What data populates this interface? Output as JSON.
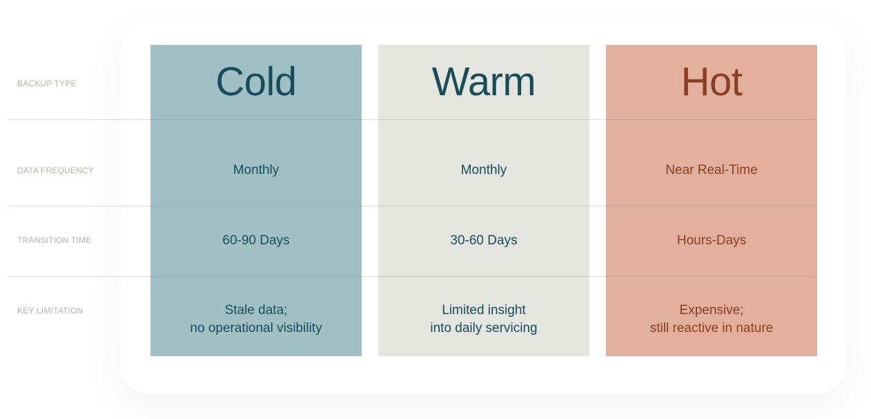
{
  "row_labels": {
    "backup_type": "BACKUP TYPE",
    "data_frequency": "DATA FREQUENCY",
    "transition_time": "TRANSITION TIME",
    "key_limitation": "KEY LIMITATION"
  },
  "columns": [
    {
      "title": "Cold",
      "data_frequency": "Monthly",
      "transition_time": "60-90 Days",
      "key_limitation": [
        "Stale data;",
        "no operational visibility"
      ],
      "bg_color": "#a1c0c5",
      "text_color": "#174d59"
    },
    {
      "title": "Warm",
      "data_frequency": "Monthly",
      "transition_time": "30-60 Days",
      "key_limitation": [
        "Limited insight",
        "into daily servicing"
      ],
      "bg_color": "#e6e6e0",
      "text_color": "#174d59"
    },
    {
      "title": "Hot",
      "data_frequency": "Near Real-Time",
      "transition_time": "Hours-Days",
      "key_limitation": [
        "Expensive;",
        "still reactive in nature"
      ],
      "bg_color": "#e2b09c",
      "text_color": "#8a3f24"
    }
  ]
}
